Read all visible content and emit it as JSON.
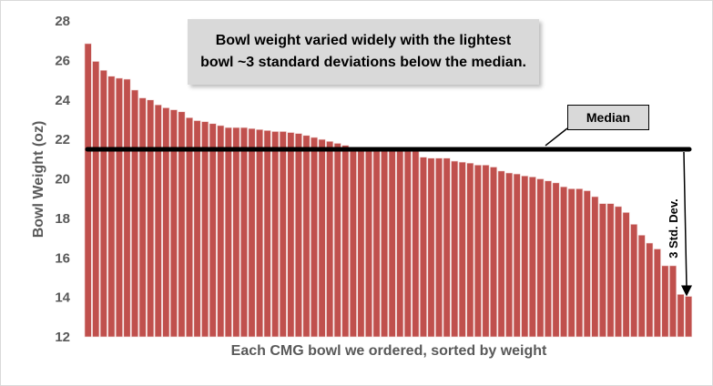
{
  "chart_data": {
    "type": "bar",
    "title": "Bowl weight varied widely with the lightest bowl ~3 standard deviations below the median.",
    "xlabel": "Each CMG bowl we ordered, sorted by weight",
    "ylabel": "Bowl Weight (oz)",
    "ylim": [
      12,
      28
    ],
    "yticks": [
      "12",
      "14",
      "16",
      "18",
      "20",
      "22",
      "24",
      "26",
      "28"
    ],
    "grid": false,
    "bar_color": "#c0504d",
    "values": [
      26.85,
      25.95,
      25.5,
      25.2,
      25.1,
      25.05,
      24.5,
      24.1,
      24.0,
      23.75,
      23.6,
      23.5,
      23.4,
      23.1,
      22.95,
      22.9,
      22.8,
      22.7,
      22.6,
      22.6,
      22.6,
      22.55,
      22.5,
      22.45,
      22.4,
      22.4,
      22.35,
      22.3,
      22.2,
      22.1,
      22.0,
      21.9,
      21.8,
      21.7,
      21.6,
      21.6,
      21.6,
      21.5,
      21.5,
      21.5,
      21.5,
      21.5,
      21.4,
      21.1,
      21.05,
      21.05,
      21.05,
      20.9,
      20.85,
      20.8,
      20.7,
      20.7,
      20.6,
      20.4,
      20.3,
      20.25,
      20.15,
      20.1,
      20.0,
      19.9,
      19.8,
      19.6,
      19.5,
      19.5,
      19.4,
      19.1,
      18.75,
      18.75,
      18.6,
      18.3,
      17.7,
      17.15,
      16.75,
      16.45,
      15.6,
      15.6,
      14.15,
      14.05
    ],
    "median": 21.5,
    "annotations": {
      "median_label": "Median",
      "std_label": "3 Std. Dev."
    }
  }
}
